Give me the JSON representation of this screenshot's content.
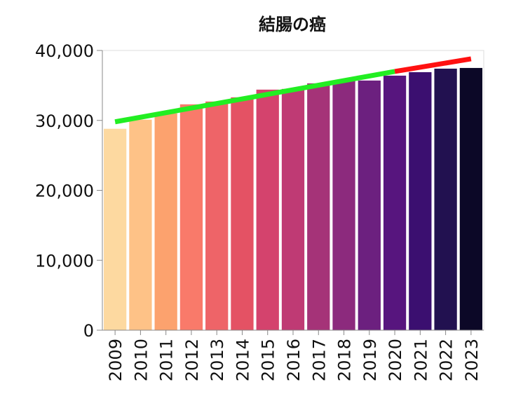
{
  "chart_data": {
    "type": "bar",
    "title": "結腸の癌",
    "xlabel": "",
    "ylabel": "",
    "ylim": [
      0,
      40000
    ],
    "yticks": [
      "0",
      "10,000",
      "20,000",
      "30,000",
      "40,000"
    ],
    "categories": [
      "2009",
      "2010",
      "2011",
      "2012",
      "2013",
      "2014",
      "2015",
      "2016",
      "2017",
      "2018",
      "2019",
      "2020",
      "2021",
      "2022",
      "2023"
    ],
    "values": [
      28800,
      30100,
      31000,
      32300,
      32700,
      33300,
      34400,
      34500,
      35300,
      35700,
      35700,
      36400,
      36900,
      37400,
      37500
    ],
    "bar_colors": [
      "#fdd9a0",
      "#fec287",
      "#fca26e",
      "#f97a6a",
      "#ee6468",
      "#e45264",
      "#d4436d",
      "#bf3a74",
      "#a53378",
      "#8c2a7d",
      "#6c207f",
      "#57157e",
      "#3b0f70",
      "#221150",
      "#0c0827"
    ],
    "trend_lines": [
      {
        "color": "#22ee22",
        "from": {
          "x": "2009",
          "y": 29800
        },
        "to": {
          "x": "2020",
          "y": 37000
        }
      },
      {
        "color": "#ff1111",
        "from": {
          "x": "2020",
          "y": 37000
        },
        "to": {
          "x": "2023",
          "y": 38800
        }
      }
    ],
    "grid": false,
    "legend": "none"
  }
}
